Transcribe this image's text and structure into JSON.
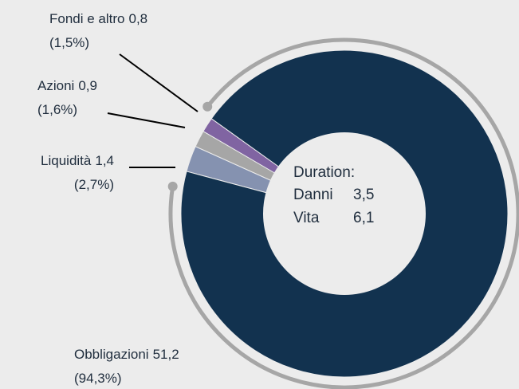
{
  "chart_data": {
    "type": "donut",
    "categories": [
      "Liquidità",
      "Azioni",
      "Fondi e altro",
      "Obbligazioni"
    ],
    "values": [
      1.4,
      0.9,
      0.8,
      51.2
    ],
    "value_labels": [
      "1,4",
      "0,9",
      "0,8",
      "51,2"
    ],
    "percentages": [
      2.7,
      1.6,
      1.5,
      94.3
    ],
    "percentage_labels": [
      "(2,7%)",
      "(1,6%)",
      "(1,5%)",
      "(94,3%)"
    ],
    "colors": [
      "#8592b0",
      "#a6a6a6",
      "#8064a2",
      "#12324f"
    ],
    "center_text": {
      "title": "Duration:",
      "rows": [
        {
          "label": "Danni",
          "value": "3,5"
        },
        {
          "label": "Vita",
          "value": "6,1"
        }
      ]
    }
  }
}
